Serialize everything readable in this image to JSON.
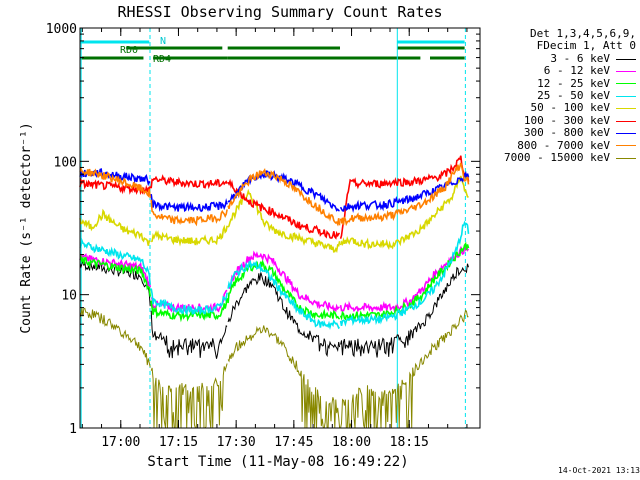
{
  "chart_data": {
    "type": "line",
    "title": "RHESSI Observing Summary Count Rates",
    "xlabel": "Start Time (11-May-08 16:49:22)",
    "ylabel": "Count Rate (s⁻¹ detector⁻¹)",
    "yscale": "log",
    "ylim": [
      1,
      1000
    ],
    "xlim_minutes": [
      0,
      104
    ],
    "x_tick_labels": [
      "17:00",
      "17:15",
      "17:30",
      "17:45",
      "18:00",
      "18:15"
    ],
    "x_tick_minutes": [
      10.6,
      25.6,
      40.6,
      55.6,
      70.6,
      85.6
    ],
    "y_tick_labels": [
      "1",
      "10",
      "100",
      "1000"
    ],
    "y_tick_values": [
      1,
      10,
      100,
      1000
    ],
    "legend_header": [
      "Det 1,3,4,5,6,9,",
      "FDecim 1, Att 0"
    ],
    "legend_placement": "right",
    "flag_labels": {
      "night": "N",
      "rd0": "RD0",
      "rd4": "RD4"
    },
    "night_intervals_minutes": [
      [
        0,
        18
      ],
      [
        82.5,
        100
      ]
    ],
    "night_bar_color": "#00e5ee",
    "flag_bar_color": "#007000",
    "rd_bar_color": "#007000",
    "gap_minutes": [
      18.5,
      38.4,
      67.6
    ],
    "series": [
      {
        "name": "3 - 6 keV",
        "color": "#000000",
        "x": [
          0,
          5,
          10,
          16,
          18,
          19,
          24,
          30,
          36,
          38,
          40,
          44,
          47,
          50,
          53,
          57,
          62,
          66,
          68,
          70,
          74,
          78,
          82,
          86,
          89,
          92,
          95,
          98,
          100,
          101
        ],
        "y": [
          17,
          16,
          15,
          14,
          10,
          5,
          4.3,
          4.3,
          4.3,
          5.5,
          8,
          12,
          13.5,
          12,
          8,
          5.5,
          4.5,
          4.3,
          4.3,
          4.3,
          4.3,
          4.3,
          4.5,
          5,
          6,
          8,
          11,
          15,
          16,
          16
        ]
      },
      {
        "name": "6 - 12 keV",
        "color": "#ff00ff",
        "x": [
          0,
          5,
          10,
          16,
          18,
          19,
          24,
          30,
          36,
          38,
          40,
          44,
          47,
          50,
          53,
          57,
          62,
          66,
          68,
          70,
          74,
          78,
          82,
          86,
          89,
          92,
          95,
          98,
          100,
          101
        ],
        "y": [
          19,
          18,
          17,
          16,
          12,
          8.5,
          8,
          8,
          8,
          10,
          14,
          19,
          20,
          18,
          14,
          10,
          8.5,
          8,
          8,
          8,
          8,
          8,
          8,
          9,
          11,
          14,
          17,
          20,
          22,
          22
        ]
      },
      {
        "name": "12 - 25 keV",
        "color": "#00ff00",
        "x": [
          0,
          5,
          10,
          16,
          18,
          19,
          24,
          30,
          36,
          38,
          40,
          44,
          47,
          50,
          53,
          57,
          62,
          66,
          68,
          70,
          74,
          78,
          82,
          86,
          89,
          92,
          95,
          98,
          100,
          101
        ],
        "y": [
          18,
          17,
          16,
          15,
          11,
          7.5,
          7,
          7,
          7,
          8.5,
          12,
          16,
          17,
          15,
          11,
          8,
          7,
          7,
          7,
          7,
          7,
          7,
          7.5,
          8.5,
          10,
          13,
          16,
          20,
          23,
          23
        ]
      },
      {
        "name": "25 - 50 keV",
        "color": "#00e5ee",
        "x": [
          0,
          5,
          10,
          16,
          18,
          19,
          24,
          30,
          36,
          38,
          40,
          44,
          47,
          50,
          53,
          57,
          62,
          66,
          68,
          70,
          74,
          78,
          82,
          86,
          89,
          92,
          95,
          98,
          100,
          101
        ],
        "y": [
          24,
          22,
          20,
          18,
          14,
          9,
          8,
          7.5,
          8,
          10,
          14,
          17,
          16,
          13,
          10,
          7.5,
          6,
          6,
          6,
          6.5,
          6.5,
          6.5,
          7,
          8,
          9,
          11,
          15,
          22,
          35,
          30
        ]
      },
      {
        "name": "50 - 100 keV",
        "color": "#d8d800",
        "x": [
          0,
          3,
          6,
          9,
          12,
          16,
          18,
          19,
          24,
          30,
          36,
          38,
          40,
          44,
          46,
          48,
          51,
          54,
          58,
          62,
          66,
          68,
          70,
          74,
          78,
          82,
          85,
          88,
          91,
          94,
          97,
          99,
          100,
          101
        ],
        "y": [
          36,
          32,
          40,
          34,
          30,
          28,
          24,
          28,
          26,
          25,
          26,
          32,
          40,
          60,
          45,
          34,
          30,
          28,
          26,
          24,
          22,
          24,
          26,
          24,
          24,
          24,
          27,
          30,
          36,
          45,
          55,
          80,
          60,
          55
        ]
      },
      {
        "name": "100 - 300 keV",
        "color": "#ff0000",
        "x": [
          0,
          5,
          10,
          16,
          18,
          19,
          24,
          30,
          36,
          38,
          40,
          44,
          47,
          50,
          53,
          57,
          62,
          66,
          68,
          70,
          74,
          78,
          82,
          86,
          89,
          92,
          95,
          97,
          99,
          100,
          101
        ],
        "y": [
          68,
          66,
          64,
          62,
          60,
          74,
          70,
          68,
          68,
          70,
          64,
          50,
          45,
          42,
          38,
          33,
          30,
          28,
          27,
          68,
          68,
          68,
          70,
          70,
          72,
          75,
          80,
          90,
          105,
          80,
          75
        ]
      },
      {
        "name": "300 - 800 keV",
        "color": "#0000ff",
        "x": [
          0,
          5,
          10,
          16,
          18,
          19,
          24,
          30,
          36,
          38,
          40,
          44,
          47,
          50,
          53,
          57,
          62,
          66,
          68,
          70,
          74,
          78,
          82,
          86,
          89,
          92,
          95,
          98,
          100,
          101
        ],
        "y": [
          80,
          82,
          78,
          74,
          72,
          48,
          45,
          45,
          46,
          48,
          55,
          72,
          80,
          78,
          74,
          66,
          55,
          46,
          44,
          46,
          47,
          47,
          49,
          52,
          56,
          60,
          65,
          72,
          78,
          75
        ]
      },
      {
        "name": "800 - 7000 keV",
        "color": "#ff8000",
        "x": [
          0,
          5,
          10,
          16,
          18,
          19,
          24,
          30,
          36,
          38,
          40,
          44,
          47,
          50,
          53,
          57,
          62,
          66,
          68,
          70,
          74,
          78,
          82,
          86,
          89,
          92,
          95,
          97,
          99,
          100,
          101
        ],
        "y": [
          85,
          80,
          72,
          62,
          58,
          40,
          36,
          36,
          38,
          42,
          52,
          72,
          82,
          80,
          72,
          58,
          45,
          37,
          35,
          37,
          38,
          38,
          40,
          44,
          48,
          55,
          65,
          80,
          95,
          75,
          70
        ]
      },
      {
        "name": "7000 - 15000 keV",
        "color": "#888800",
        "x": [
          0,
          4,
          8,
          12,
          16,
          18,
          20,
          24,
          28,
          32,
          36,
          38,
          40,
          42,
          44,
          46,
          48,
          50,
          53,
          56,
          60,
          64,
          68,
          70,
          74,
          78,
          82,
          86,
          88,
          91,
          94,
          97,
          100,
          101
        ],
        "y": [
          7.5,
          7,
          6,
          5,
          4,
          3,
          2.2,
          2,
          2,
          2,
          2.2,
          3,
          3.8,
          4.4,
          4.8,
          5.2,
          5.4,
          5,
          4,
          3,
          2,
          1.6,
          1.5,
          1.6,
          2,
          1.8,
          2,
          2.5,
          3,
          3.8,
          4.5,
          5.5,
          7,
          7
        ]
      }
    ]
  },
  "timestamp": "14-Oct-2021 13:13"
}
